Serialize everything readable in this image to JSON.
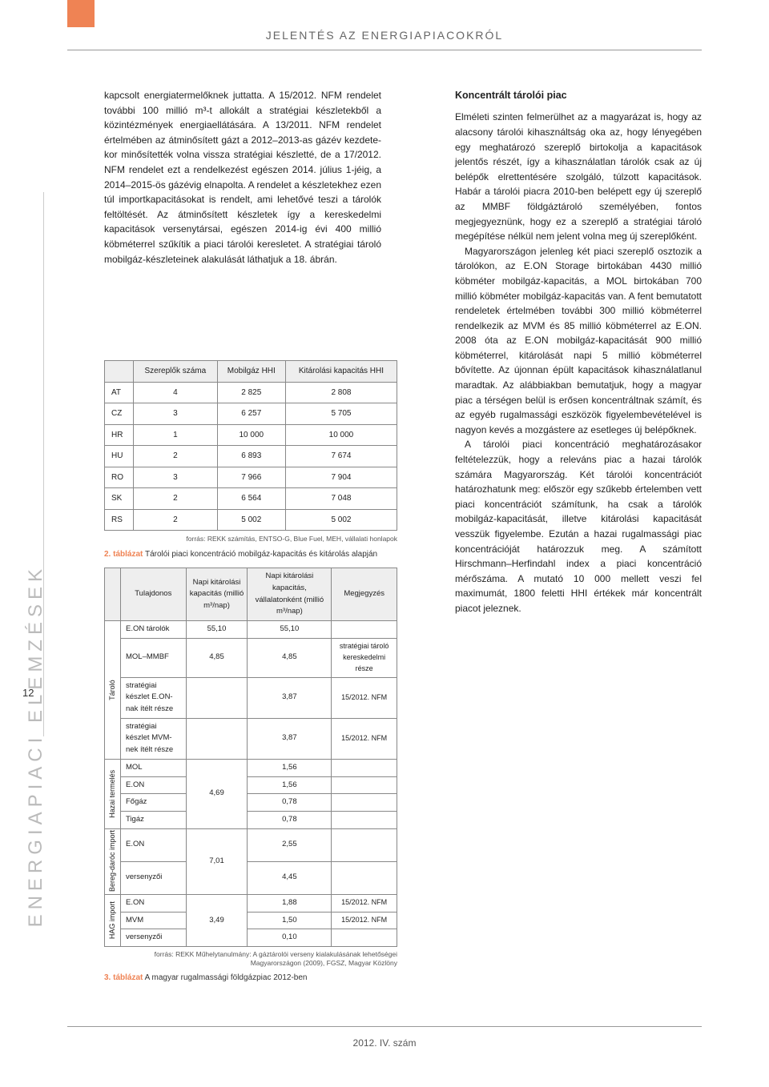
{
  "header": "JELENTÉS AZ ENERGIAPIACOKRÓL",
  "footer": "2012. IV. szám",
  "sidebar_text": "ENERGIAPIACI ELEMZÉSEK",
  "page_number": "12",
  "accent_color": "#ef8354",
  "left_para": "kapcsolt energiatermelőknek juttatta. A 15/2012. NFM rendelet további 100 millió m³-t allokált a stratégiai készletekből a közintézmények energia­ellátására. A 13/2011. NFM rendelet értelmében az átminősített gázt a 2012–2013-as gázév kezdete­kor minősítették volna vissza stratégiai készletté, de a 17/2012. NFM rendelet ezt a rendelkezést egészen 2014. július 1-jéig, a 2014–2015-ös gáz­évig elnapolta. A rendelet a készletekhez ezen túl importkapacitásokat is rendelt, ami lehetővé teszi a tárolók feltöltését. Az átminősített készletek így a kereskedelmi kapacitások versenytársai, egészen 2014-ig évi 400 millió köbméterrel szűkítik a piaci tárolói keresletet. A stratégiai tároló mobilgáz-készleteinek alakulását láthatjuk a 18. ábrán.",
  "right_heading": "Koncentrált tárolói piac",
  "right_para1": "Elméleti szinten felmerülhet az a magyarázat is, hogy az alacsony tárolói kihasználtság oka az, hogy lényegében egy meghatározó szereplő birtokolja a kapacitások jelentős részét, így a kihasználatlan tárolók csak az új belépők elrettentésére szolgáló, túlzott kapacitások. Habár a tárolói piacra 2010-ben belépett egy új szereplő az MMBF földgáztá­roló személyében, fontos megjegyeznünk, hogy ez a szereplő a stratégiai tároló megépítése nélkül nem jelent volna meg új szereplőként.",
  "right_para2": "Magyarországon jelenleg két piaci szereplő osztozik a tárolókon, az E.ON Storage birtokában 4430 millió köbméter mobilgáz-kapacitás, a MOL birtokában 700 millió köbmé­ter mobilgáz-kapacitás van. A fent bemutatott rendeletek értelmében további 300 millió köbméterrel rendelkezik az MVM és 85 millió köbméterrel az E.ON. 2008 óta az E.ON mobilgáz-kapacitását 900 mil­lió köbméterrel, kitárolását napi 5 millió köbméterrel bővítette. Az újonnan épült kapacitások kihasználatlanul maradtak. Az alábbiakban bemutatjuk, hogy a magyar piac a térségen belül is erősen koncentráltnak számít, és az egyéb rugal­massági eszközök figyelem­bevételével is nagyon kevés a mozgástere az esetleges új belépőknek.",
  "right_para3": "A tárolói piaci koncentráció meghatározásakor feltételez­zük, hogy a releváns piac a hazai tárolók számára Magyar­ország. Két tárolói koncent­rációt határozhatunk meg: először egy szűkebb értelem­ben vett piaci koncentrációt számítunk, ha csak a tárolók mobilgáz-kapacitását, illetve kitárolási kapacitását vesszük figyelembe. Ezután a hazai rugalmassági piac koncentrá­cióját határozzuk meg. A szá­mított Hirschmann–Herfindahl index a piaci koncentráció mérőszáma. A mutató 10 000 mellett veszi fel maximumát, 1800 feletti HHI értékek már koncentrált piacot jeleznek.",
  "table1": {
    "columns": [
      "",
      "Szereplők száma",
      "Mobilgáz HHI",
      "Kitárolási kapacitás HHI"
    ],
    "rows": [
      [
        "AT",
        "4",
        "2 825",
        "2 808"
      ],
      [
        "CZ",
        "3",
        "6 257",
        "5 705"
      ],
      [
        "HR",
        "1",
        "10 000",
        "10 000"
      ],
      [
        "HU",
        "2",
        "6 893",
        "7 674"
      ],
      [
        "RO",
        "3",
        "7 966",
        "7 904"
      ],
      [
        "SK",
        "2",
        "6 564",
        "7 048"
      ],
      [
        "RS",
        "2",
        "5 002",
        "5 002"
      ]
    ],
    "source": "forrás: REKK számítás, ENTSO-G, Blue Fuel, MEH, vállalati honlapok",
    "caption_num": "2. táblázat",
    "caption_text": "Tárolói piaci koncentráció mobilgáz-kapacitás és kitárolás alapján"
  },
  "table2": {
    "columns": [
      "",
      "Tulajdonos",
      "Napi kitárolási kapacitás (millió m³/nap)",
      "Napi kitárolási kapacitás, vállalatonként (millió m³/nap)",
      "Megjegyzés"
    ],
    "groups": [
      {
        "label": "Tároló",
        "rows": [
          {
            "owner": "E.ON tárolók",
            "cap": "55,10",
            "cap_pc": "55,10",
            "note": ""
          },
          {
            "owner": "MOL–MMBF",
            "cap": "4,85",
            "cap_pc": "4,85",
            "note": "stratégiai tároló kereskedelmi része"
          },
          {
            "owner": "stratégiai készlet E.ON-nak ítélt része",
            "cap": "",
            "cap_pc": "3,87",
            "note": "15/2012. NFM"
          },
          {
            "owner": "stratégiai készlet MVM-nek ítélt része",
            "cap": "",
            "cap_pc": "3,87",
            "note": "15/2012. NFM"
          }
        ]
      },
      {
        "label": "Hazai termelés",
        "cap": "4,69",
        "rows": [
          {
            "owner": "MOL",
            "cap_pc": "1,56",
            "note": ""
          },
          {
            "owner": "E.ON",
            "cap_pc": "1,56",
            "note": ""
          },
          {
            "owner": "Főgáz",
            "cap_pc": "0,78",
            "note": ""
          },
          {
            "owner": "Tigáz",
            "cap_pc": "0,78",
            "note": ""
          }
        ]
      },
      {
        "label": "Bereg-daróc import",
        "cap": "7,01",
        "rows": [
          {
            "owner": "E.ON",
            "cap_pc": "2,55",
            "note": ""
          },
          {
            "owner": "versenyzői",
            "cap_pc": "4,45",
            "note": ""
          }
        ]
      },
      {
        "label": "HAG import",
        "cap": "3,49",
        "rows": [
          {
            "owner": "E.ON",
            "cap_pc": "1,88",
            "note": "15/2012. NFM"
          },
          {
            "owner": "MVM",
            "cap_pc": "1,50",
            "note": "15/2012. NFM"
          },
          {
            "owner": "versenyzői",
            "cap_pc": "0,10",
            "note": ""
          }
        ]
      }
    ],
    "source": "forrás: REKK Műhelytanulmány: A gáztárolói verseny kialakulásának lehetőségei Magyarországon (2009), FGSZ, Magyar Közlöny",
    "caption_num": "3. táblázat",
    "caption_text": "A magyar rugalmassági földgázpiac 2012-ben"
  }
}
